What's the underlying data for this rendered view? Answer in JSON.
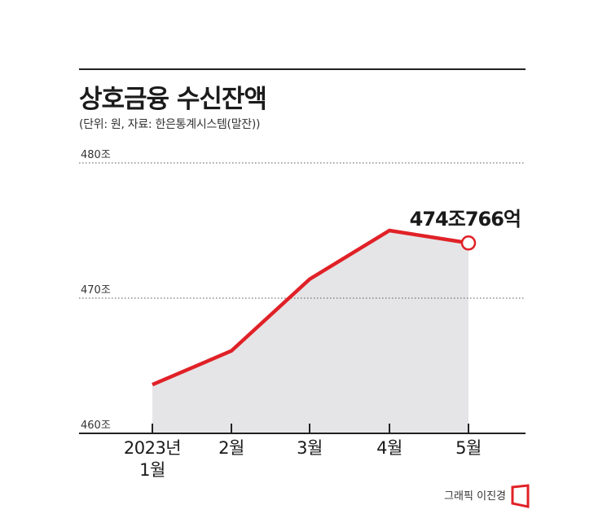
{
  "header": {
    "title": "상호금융 수신잔액",
    "subtitle": "(단위: 원, 자료: 한은통계시스템(말잔))"
  },
  "chart_data": {
    "type": "area",
    "title": "상호금융 수신잔액",
    "xlabel": "",
    "ylabel": "",
    "categories": [
      "2023년\n1월",
      "2월",
      "3월",
      "4월",
      "5월"
    ],
    "series": [
      {
        "values": [
          463.6,
          466.1,
          471.4,
          475.0,
          474.08
        ]
      }
    ],
    "ylim": [
      460,
      480
    ],
    "yticks": [
      460,
      470,
      480
    ],
    "ytick_labels": [
      "460조",
      "470조",
      "480조"
    ],
    "annotations": [
      {
        "point_index": 4,
        "text": "474조766억"
      }
    ],
    "grid": "dotted horizontal at 470 and 480",
    "colors": {
      "line": "#e02127",
      "area": "#e5e5e7",
      "end_marker_fill": "#ffffff"
    }
  },
  "footer": {
    "credit": "그래픽 이진경"
  }
}
